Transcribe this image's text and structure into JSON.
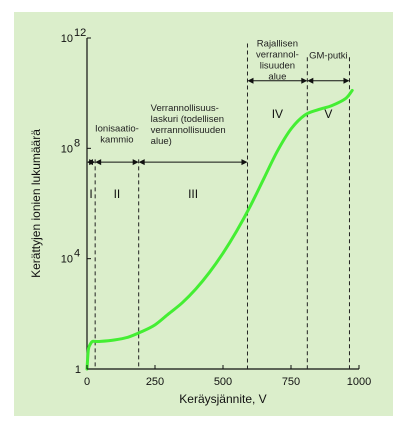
{
  "chart_data": {
    "type": "line",
    "xlabel": "Keräysjännite, V",
    "ylabel": "Kerättyjen ionien lukumäärä",
    "x_ticks": [
      "0",
      "250",
      "500",
      "750",
      "1000"
    ],
    "y_ticks": [
      {
        "base": "1",
        "exp": ""
      },
      {
        "base": "10",
        "exp": "4"
      },
      {
        "base": "10",
        "exp": "8"
      },
      {
        "base": "10",
        "exp": "12"
      }
    ],
    "xlim": [
      0,
      1000
    ],
    "ylim_log10": [
      0,
      12
    ],
    "y_scale": "log",
    "grid": false,
    "line_color": "#44ee33",
    "series": [
      {
        "x": [
          0,
          5,
          12,
          20,
          30,
          50,
          100,
          150,
          200,
          250,
          300,
          350,
          400,
          450,
          500,
          550,
          600,
          650,
          700,
          750,
          800,
          850,
          900,
          950,
          975
        ],
        "log10_y": [
          0,
          0.7,
          0.9,
          1.0,
          1.0,
          1.0,
          1.05,
          1.15,
          1.35,
          1.6,
          2.0,
          2.4,
          2.9,
          3.5,
          4.2,
          5.0,
          5.9,
          6.9,
          7.9,
          8.7,
          9.2,
          9.4,
          9.55,
          9.8,
          10.1
        ]
      }
    ],
    "regions": [
      {
        "numeral": "I",
        "label": [],
        "x_start": 0,
        "x_end": 30
      },
      {
        "numeral": "II",
        "label": [
          "Ionisaatio-",
          "kammio"
        ],
        "x_start": 30,
        "x_end": 190
      },
      {
        "numeral": "III",
        "label": [
          "Verrannollisuus-",
          "laskuri (todellisen",
          "verrannollisuuden",
          "alue)"
        ],
        "x_start": 190,
        "x_end": 590
      },
      {
        "numeral": "IV",
        "label": [
          "Rajallisen",
          "verrannol-",
          "lisuuden",
          "alue"
        ],
        "x_start": 590,
        "x_end": 810
      },
      {
        "numeral": "V",
        "label": [
          "GM-putki"
        ],
        "x_start": 810,
        "x_end": 965
      }
    ]
  }
}
